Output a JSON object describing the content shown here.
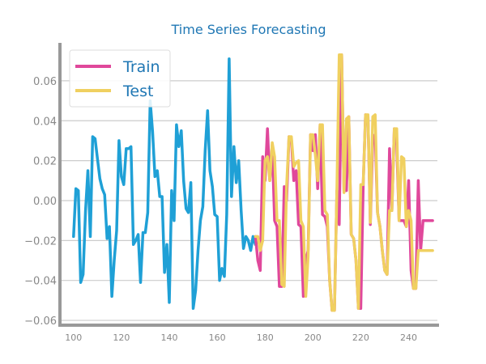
{
  "chart_data": {
    "type": "line",
    "title": "Time Series Forecasting",
    "xlabel": "",
    "ylabel": "",
    "xlim": [
      95,
      252
    ],
    "ylim": [
      -0.062,
      0.079
    ],
    "x_ticks": [
      100,
      120,
      140,
      160,
      180,
      200,
      220,
      240
    ],
    "y_ticks": [
      -0.06,
      -0.04,
      -0.02,
      0.0,
      0.02,
      0.04,
      0.06
    ],
    "x_tick_labels": [
      "100",
      "120",
      "140",
      "160",
      "180",
      "200",
      "220",
      "240"
    ],
    "y_tick_labels": [
      "−0.06",
      "−0.04",
      "−0.02",
      "0.00",
      "0.02",
      "0.04",
      "0.06"
    ],
    "grid": "horizontal",
    "legend_position": "top-left",
    "legend": [
      {
        "label": "Train",
        "color": "#e0489b"
      },
      {
        "label": "Test",
        "color": "#f0d060"
      }
    ],
    "series": [
      {
        "name": "",
        "color": "#1fa0d6",
        "x": [
          100,
          101,
          102,
          103,
          104,
          105,
          106,
          107,
          108,
          109,
          110,
          111,
          112,
          113,
          114,
          115,
          116,
          117,
          118,
          119,
          120,
          121,
          122,
          123,
          124,
          125,
          126,
          127,
          128,
          129,
          130,
          131,
          132,
          133,
          134,
          135,
          136,
          137,
          138,
          139,
          140,
          141,
          142,
          143,
          144,
          145,
          146,
          147,
          148,
          149,
          150,
          151,
          152,
          153,
          154,
          155,
          156,
          157,
          158,
          159,
          160,
          161,
          162,
          163,
          164,
          165,
          166,
          167,
          168,
          169,
          170,
          171,
          172,
          173,
          174,
          175,
          176,
          177,
          178,
          179
        ],
        "y": [
          -0.018,
          0.006,
          0.005,
          -0.041,
          -0.037,
          -0.005,
          0.015,
          -0.018,
          0.032,
          0.031,
          0.021,
          0.011,
          0.006,
          0.003,
          -0.019,
          -0.013,
          -0.048,
          -0.03,
          -0.015,
          0.03,
          0.012,
          0.008,
          0.026,
          0.026,
          0.027,
          -0.022,
          -0.02,
          -0.017,
          -0.041,
          -0.016,
          -0.016,
          -0.006,
          0.05,
          0.035,
          0.012,
          0.015,
          0.002,
          0.002,
          -0.036,
          -0.022,
          -0.051,
          0.005,
          -0.01,
          0.038,
          0.027,
          0.035,
          0.01,
          -0.004,
          -0.006,
          0.009,
          -0.054,
          -0.045,
          -0.025,
          -0.01,
          -0.003,
          0.025,
          0.045,
          0.015,
          0.007,
          -0.007,
          -0.008,
          -0.04,
          -0.034,
          -0.038,
          -0.007,
          0.071,
          0.002,
          0.027,
          0.009,
          0.02,
          -0.005,
          -0.024,
          -0.018,
          -0.02,
          -0.025,
          -0.018,
          -0.022,
          -0.02,
          -0.022,
          -0.02
        ]
      },
      {
        "name": "Train",
        "color": "#e0489b",
        "x": [
          176,
          177,
          178,
          179,
          180,
          181,
          182,
          183,
          184,
          185,
          186,
          187,
          188,
          189,
          190,
          191,
          192,
          193,
          194,
          195,
          196,
          197,
          198,
          199,
          200,
          201,
          202,
          203,
          204,
          205,
          206,
          207,
          208,
          209,
          210,
          211,
          212,
          213,
          214,
          215,
          216,
          217,
          218,
          219,
          220,
          221,
          222,
          223,
          224,
          225,
          226,
          227,
          228,
          229,
          230,
          231,
          232,
          233,
          234,
          235,
          236,
          237,
          238,
          239,
          240,
          241,
          242,
          243,
          244,
          245,
          246,
          247,
          248,
          249,
          250
        ],
        "y": [
          -0.018,
          -0.03,
          -0.035,
          0.022,
          0.01,
          0.036,
          0.01,
          0.028,
          -0.01,
          -0.013,
          -0.043,
          -0.043,
          0.007,
          0.0,
          0.032,
          0.031,
          0.01,
          0.015,
          -0.012,
          -0.013,
          -0.048,
          -0.03,
          -0.025,
          0.033,
          0.025,
          0.033,
          0.006,
          0.038,
          -0.007,
          -0.008,
          -0.013,
          -0.04,
          -0.055,
          -0.055,
          0.005,
          -0.012,
          0.073,
          0.005,
          0.005,
          0.042,
          -0.017,
          -0.019,
          -0.03,
          -0.054,
          -0.054,
          0.008,
          0.043,
          0.042,
          -0.012,
          0.031,
          0.033,
          -0.006,
          -0.013,
          -0.025,
          -0.035,
          -0.037,
          0.026,
          -0.005,
          0.036,
          0.028,
          -0.01,
          -0.01,
          -0.01,
          -0.013,
          0.01,
          -0.035,
          -0.044,
          -0.044,
          0.01,
          -0.025,
          -0.01,
          -0.01,
          -0.01,
          -0.01,
          -0.01
        ]
      },
      {
        "name": "Test",
        "color": "#f0d060",
        "x": [
          176,
          177,
          178,
          179,
          180,
          181,
          182,
          183,
          184,
          185,
          186,
          187,
          188,
          189,
          190,
          191,
          192,
          193,
          194,
          195,
          196,
          197,
          198,
          199,
          200,
          201,
          202,
          203,
          204,
          205,
          206,
          207,
          208,
          209,
          210,
          211,
          212,
          213,
          214,
          215,
          216,
          217,
          218,
          219,
          220,
          221,
          222,
          223,
          224,
          225,
          226,
          227,
          228,
          229,
          230,
          231,
          232,
          233,
          234,
          235,
          236,
          237,
          238,
          239,
          240,
          241,
          242,
          243,
          244,
          245,
          246,
          247,
          248,
          249,
          250
        ],
        "y": [
          -0.018,
          -0.018,
          -0.025,
          -0.02,
          0.02,
          0.022,
          0.01,
          0.029,
          0.022,
          -0.01,
          -0.01,
          -0.042,
          -0.043,
          0.007,
          0.032,
          0.032,
          0.017,
          0.019,
          0.02,
          -0.01,
          -0.013,
          -0.048,
          -0.028,
          0.033,
          0.033,
          0.023,
          0.01,
          0.038,
          0.038,
          -0.005,
          -0.007,
          -0.04,
          -0.055,
          -0.055,
          0.005,
          0.073,
          0.073,
          0.004,
          0.041,
          0.042,
          -0.017,
          -0.019,
          -0.03,
          -0.054,
          0.008,
          0.008,
          0.043,
          0.043,
          -0.011,
          0.042,
          0.043,
          -0.006,
          -0.013,
          -0.025,
          -0.035,
          -0.037,
          -0.005,
          -0.005,
          0.036,
          0.036,
          -0.01,
          0.022,
          0.021,
          -0.013,
          -0.005,
          -0.01,
          -0.044,
          -0.044,
          -0.025,
          -0.025,
          -0.025,
          -0.025,
          -0.025,
          -0.025,
          -0.025
        ]
      }
    ]
  }
}
